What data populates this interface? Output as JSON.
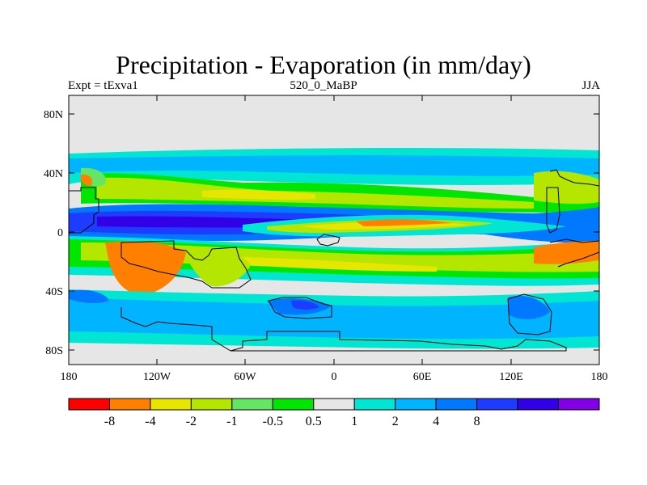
{
  "title": "Precipitation - Evaporation (in mm/day)",
  "subtitle_left": "Expt = tExva1",
  "subtitle_center": "520_0_MaBP",
  "subtitle_right": "JJA",
  "y_ticks": [
    "80N",
    "40N",
    "0",
    "40S",
    "80S"
  ],
  "x_ticks": [
    "180",
    "120W",
    "60W",
    "0",
    "60E",
    "120E",
    "180"
  ],
  "colorbar": {
    "colors": [
      "#ff0000",
      "#ff8000",
      "#e6e600",
      "#b4e600",
      "#64e664",
      "#00e600",
      "#e6e6e6",
      "#00e6d2",
      "#00b4ff",
      "#0078ff",
      "#1e3cff",
      "#3200e6",
      "#8200e6"
    ],
    "labels": [
      "-8",
      "-4",
      "-2",
      "-1",
      "-0.5",
      "0.5",
      "1",
      "2",
      "4",
      "8"
    ]
  }
}
